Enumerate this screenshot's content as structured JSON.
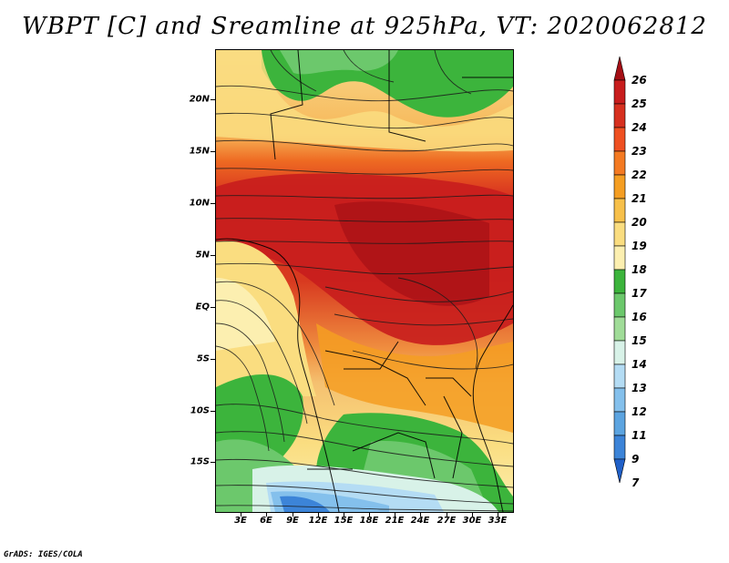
{
  "title": "WBPT [C] and Sreamline at 925hPa, VT: 2020062812",
  "credit": "GrADS: IGES/COLA",
  "map": {
    "lat_labels": [
      "20N",
      "15N",
      "10N",
      "5N",
      "EQ",
      "5S",
      "10S",
      "15S"
    ],
    "lon_labels": [
      "3E",
      "6E",
      "9E",
      "12E",
      "15E",
      "18E",
      "21E",
      "24E",
      "27E",
      "30E",
      "33E"
    ]
  },
  "colorbar": {
    "levels": [
      "26",
      "25",
      "24",
      "23",
      "22",
      "21",
      "20",
      "19",
      "18",
      "17",
      "16",
      "15",
      "14",
      "13",
      "12",
      "11",
      "9",
      "7"
    ],
    "colors": [
      "#a50f15",
      "#c81d1d",
      "#d7301f",
      "#ef5021",
      "#f47a22",
      "#f59e22",
      "#f7c04a",
      "#fadd80",
      "#fcefb0",
      "#3cb43c",
      "#6cc86c",
      "#a0dc98",
      "#d8f2e8",
      "#b4dcf4",
      "#84c0ec",
      "#5ca4e0",
      "#3c84d8",
      "#2060c8"
    ]
  }
}
